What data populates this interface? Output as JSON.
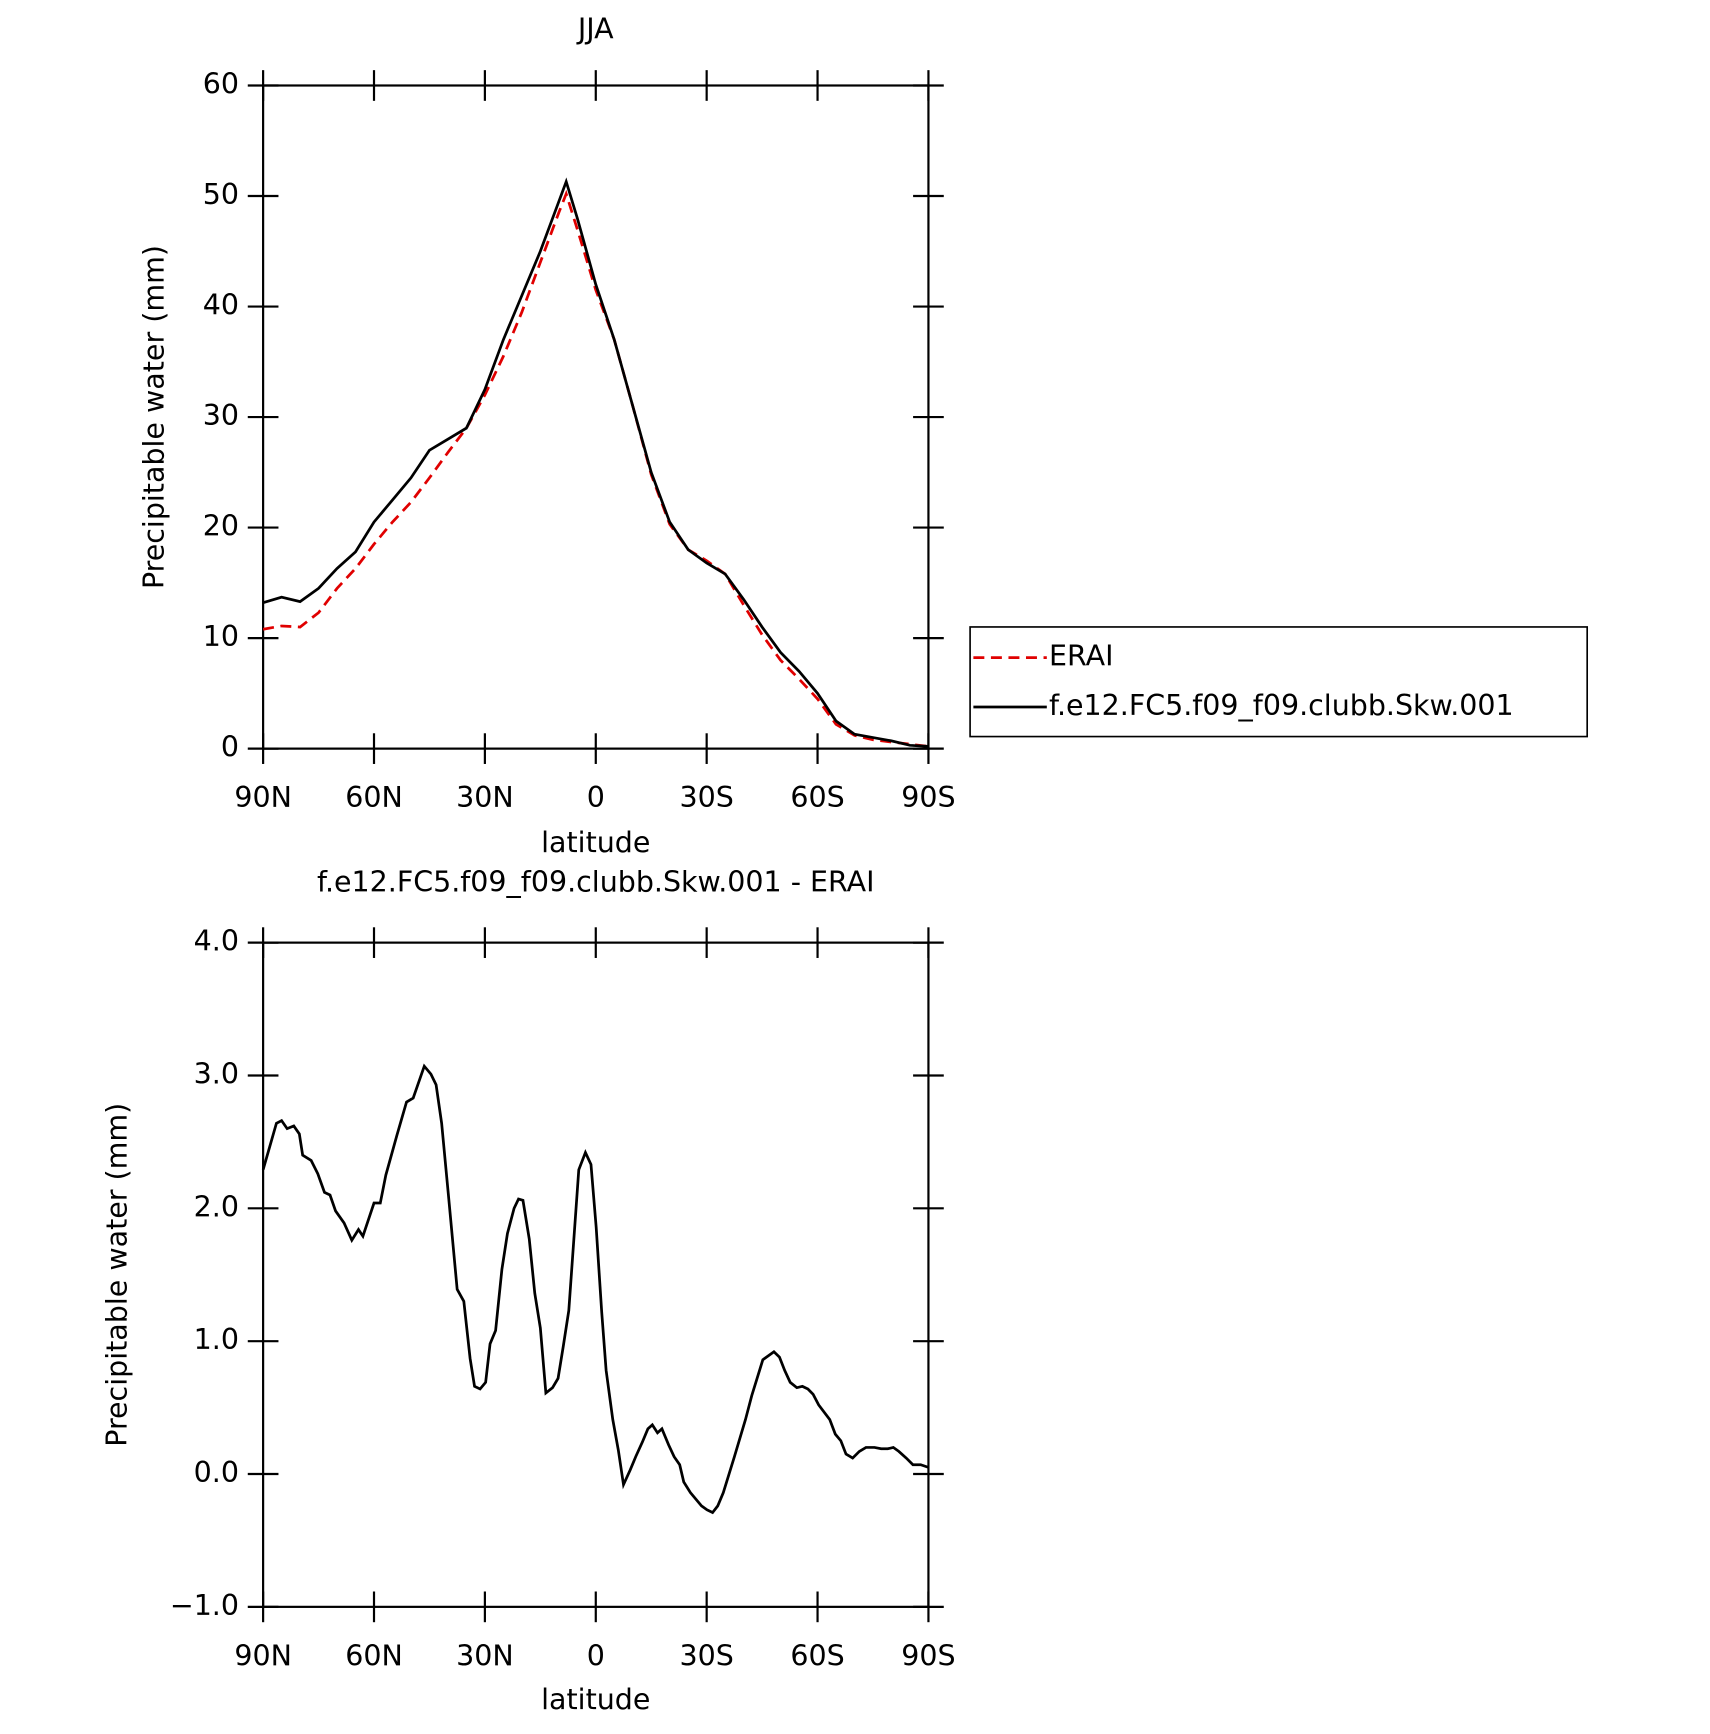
{
  "chart_data": [
    {
      "type": "line",
      "title": "JJA",
      "xlabel": "latitude",
      "ylabel": "Precipitable water (mm)",
      "x": [
        90,
        85,
        80,
        75,
        70,
        65,
        60,
        55,
        50,
        45,
        40,
        35,
        30,
        25,
        20,
        15,
        10,
        8,
        5,
        0,
        -5,
        -10,
        -15,
        -20,
        -25,
        -30,
        -35,
        -40,
        -45,
        -50,
        -55,
        -60,
        -65,
        -70,
        -75,
        -80,
        -85,
        -90
      ],
      "series": [
        {
          "name": "ERAI",
          "color": "#e00000",
          "style": "dashed",
          "values": [
            10.8,
            11.1,
            11.0,
            12.3,
            14.5,
            16.3,
            18.5,
            20.5,
            22.3,
            24.5,
            26.8,
            29,
            32,
            35.5,
            39.5,
            44,
            48.5,
            50.2,
            47,
            41.5,
            37,
            31,
            24.8,
            20.3,
            18,
            17,
            15.8,
            13,
            10.3,
            8,
            6.3,
            4.5,
            2.2,
            1.2,
            0.8,
            0.6,
            0.4,
            0.2
          ]
        },
        {
          "name": "f.e12.FC5.f09_f09.clubb.Skw.001",
          "color": "#000000",
          "style": "solid",
          "values": [
            13.2,
            13.7,
            13.3,
            14.5,
            16.3,
            17.8,
            20.5,
            22.5,
            24.5,
            27,
            28,
            29,
            32.5,
            37,
            41,
            45,
            49.5,
            51.3,
            48,
            42,
            37,
            31,
            25,
            20.5,
            18,
            16.8,
            15.8,
            13.5,
            11,
            8.7,
            7,
            5,
            2.5,
            1.3,
            1,
            0.7,
            0.3,
            0.2
          ]
        }
      ],
      "xlim": [
        90,
        -90
      ],
      "xticks": [
        {
          "value": 90,
          "label": "90N"
        },
        {
          "value": 60,
          "label": "60N"
        },
        {
          "value": 30,
          "label": "30N"
        },
        0,
        {
          "value": -30,
          "label": "30S"
        },
        {
          "value": -60,
          "label": "60S"
        },
        {
          "value": -90,
          "label": "90S"
        }
      ],
      "ylim": [
        0,
        60
      ],
      "yticks": [
        0,
        10,
        20,
        30,
        40,
        50,
        60
      ],
      "legend": "right"
    },
    {
      "type": "line",
      "title": "f.e12.FC5.f09_f09.clubb.Skw.001 - ERAI",
      "xlabel": "latitude",
      "ylabel": "Precipitable water (mm)",
      "x": [
        90,
        86.4,
        85,
        83.5,
        81.7,
        80.2,
        79.3,
        77,
        75.2,
        73.4,
        71.9,
        70.4,
        68.1,
        66,
        64.2,
        63,
        60,
        58.3,
        56.8,
        53.8,
        51.2,
        49.4,
        46.4,
        44.6,
        43.2,
        41.7,
        39.9,
        37.5,
        35.7,
        34,
        32.8,
        31.3,
        29.8,
        28.6,
        27.1,
        25.4,
        23.9,
        22.1,
        20.9,
        19.7,
        18,
        16.5,
        15,
        13.5,
        11.7,
        10.2,
        8.8,
        7.3,
        4.6,
        2.8,
        1.3,
        -0.1,
        -1.6,
        -2.8,
        -4.6,
        -6.1,
        -7.5,
        -9.3,
        -10.8,
        -12.6,
        -14.1,
        -15.3,
        -16.7,
        -17.9,
        -19.7,
        -21.2,
        -22.7,
        -23.8,
        -25.6,
        -28.6,
        -30.1,
        -31.6,
        -33,
        -34.5,
        -37.5,
        -40.5,
        -42.2,
        -45.2,
        -48.2,
        -49.7,
        -51.1,
        -52.6,
        -54.4,
        -55.9,
        -57.4,
        -58.8,
        -60.3,
        -63.3,
        -64.8,
        -66.3,
        -67.7,
        -69.5,
        -71.3,
        -73.1,
        -75.4,
        -77.2,
        -79,
        -80.5,
        -82,
        -84,
        -85.8,
        -87.9,
        -90
      ],
      "series": [
        {
          "name": "f.e12.FC5.f09_f09.clubb.Skw.001 - ERAI",
          "color": "#000000",
          "style": "solid",
          "values": [
            2.29,
            2.64,
            2.66,
            2.6,
            2.62,
            2.56,
            2.4,
            2.36,
            2.26,
            2.12,
            2.1,
            1.98,
            1.89,
            1.76,
            1.84,
            1.79,
            2.04,
            2.04,
            2.25,
            2.55,
            2.8,
            2.83,
            3.07,
            3.01,
            2.93,
            2.64,
            2.11,
            1.39,
            1.3,
            0.87,
            0.66,
            0.64,
            0.69,
            0.98,
            1.08,
            1.54,
            1.81,
            2,
            2.07,
            2.06,
            1.77,
            1.36,
            1.1,
            0.61,
            0.65,
            0.72,
            0.96,
            1.23,
            2.29,
            2.42,
            2.33,
            1.86,
            1.22,
            0.78,
            0.41,
            0.18,
            -0.08,
            0.03,
            0.13,
            0.24,
            0.34,
            0.37,
            0.31,
            0.34,
            0.22,
            0.13,
            0.07,
            -0.06,
            -0.14,
            -0.24,
            -0.27,
            -0.29,
            -0.24,
            -0.14,
            0.13,
            0.41,
            0.59,
            0.86,
            0.92,
            0.88,
            0.78,
            0.69,
            0.65,
            0.66,
            0.64,
            0.6,
            0.52,
            0.41,
            0.3,
            0.25,
            0.15,
            0.12,
            0.17,
            0.2,
            0.2,
            0.19,
            0.19,
            0.2,
            0.17,
            0.12,
            0.07,
            0.07,
            0.05
          ]
        }
      ],
      "xlim": [
        90,
        -90
      ],
      "xticks": [
        {
          "value": 90,
          "label": "90N"
        },
        {
          "value": 60,
          "label": "60N"
        },
        {
          "value": 30,
          "label": "30N"
        },
        0,
        {
          "value": -30,
          "label": "30S"
        },
        {
          "value": -60,
          "label": "60S"
        },
        {
          "value": -90,
          "label": "90S"
        }
      ],
      "ylim": [
        -1,
        4
      ],
      "yticks": [
        {
          "value": -1,
          "label": "−1.0"
        },
        {
          "value": 0,
          "label": "0.0"
        },
        {
          "value": 1,
          "label": "1.0"
        },
        {
          "value": 2,
          "label": "2.0"
        },
        {
          "value": 3,
          "label": "3.0"
        },
        {
          "value": 4,
          "label": "4.0"
        }
      ]
    }
  ]
}
